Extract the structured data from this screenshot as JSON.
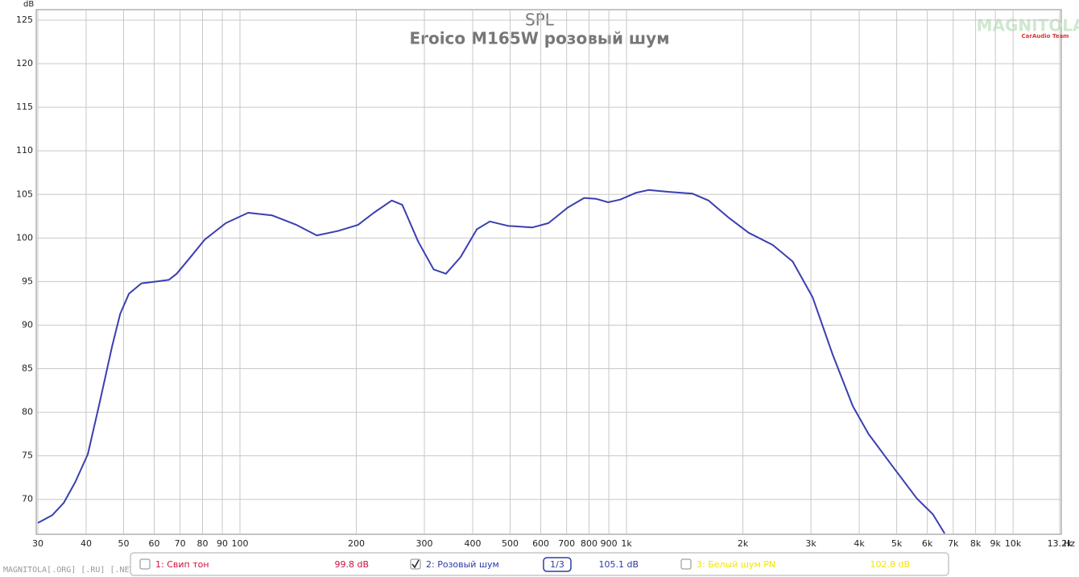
{
  "chart_data": {
    "type": "line",
    "title": "SPL",
    "subtitle": "Eroico M165W розовый шум",
    "x_unit": "Hz",
    "y_unit": "dB",
    "log_x": true,
    "grid": true,
    "xlim": [
      30,
      13200
    ],
    "ylim": [
      66,
      126.2
    ],
    "xticks": [
      30,
      40,
      50,
      60,
      70,
      80,
      90,
      100,
      200,
      300,
      400,
      500,
      600,
      700,
      800,
      900,
      {
        "value": 1000,
        "label": "1k"
      },
      {
        "value": 2000,
        "label": "2k"
      },
      {
        "value": 3000,
        "label": "3k"
      },
      {
        "value": 4000,
        "label": "4k"
      },
      {
        "value": 5000,
        "label": "5k"
      },
      {
        "value": 6000,
        "label": "6k"
      },
      {
        "value": 7000,
        "label": "7k"
      },
      {
        "value": 8000,
        "label": "8k"
      },
      {
        "value": 9000,
        "label": "9k"
      },
      {
        "value": 10000,
        "label": "10k"
      },
      {
        "value": 13200,
        "label": "13.2k"
      }
    ],
    "yticks": [
      70,
      75,
      80,
      85,
      90,
      95,
      100,
      105,
      110,
      115,
      120,
      125
    ],
    "x": [
      30,
      32.7,
      35,
      37.5,
      40.4,
      43.4,
      46.7,
      49,
      51.6,
      55.6,
      60.7,
      65.5,
      68.6,
      73.8,
      81,
      91.9,
      105,
      121,
      140,
      158,
      179,
      202,
      222,
      247,
      263,
      289,
      317,
      341,
      372,
      410,
      443,
      493,
      570,
      628,
      705,
      777,
      834,
      896,
      963,
      1060,
      1140,
      1280,
      1480,
      1630,
      1830,
      2070,
      2390,
      2690,
      3030,
      3410,
      3850,
      4230,
      4880,
      5640,
      6200,
      6650
    ],
    "series": [
      {
        "name": "2: Розовый шум",
        "color": "#3a3fb0",
        "values": [
          67.3,
          68.2,
          69.6,
          72.0,
          75.2,
          81.2,
          87.6,
          91.3,
          93.6,
          94.8,
          95.0,
          95.2,
          95.9,
          97.6,
          99.8,
          101.7,
          102.9,
          102.6,
          101.5,
          100.3,
          100.8,
          101.5,
          102.9,
          104.3,
          103.8,
          99.6,
          96.4,
          95.9,
          97.8,
          101.0,
          101.9,
          101.4,
          101.2,
          101.7,
          103.5,
          104.6,
          104.5,
          104.1,
          104.4,
          105.2,
          105.5,
          105.3,
          105.1,
          104.3,
          102.4,
          100.6,
          99.2,
          97.3,
          93.2,
          86.7,
          80.7,
          77.5,
          73.8,
          70.1,
          68.3,
          66.1
        ]
      }
    ]
  },
  "measurements": [
    {
      "name": "1: Свип тон",
      "level": "99.8 dB",
      "color": "#d0103a",
      "checked": false
    },
    {
      "name": "2: Розовый шум",
      "level": "105.1 dB",
      "color": "#2b3aa8",
      "checked": true
    },
    {
      "name": "3: Белый шум PN",
      "level": "102.8 dB",
      "color": "#f2e600",
      "checked": false
    }
  ],
  "smoothing": "1/3",
  "watermark": "MAGNITOLA[.ORG] [.RU] [.NET]",
  "logo": {
    "name": "MAGNITOLA",
    "team": "CarAudio Team"
  }
}
